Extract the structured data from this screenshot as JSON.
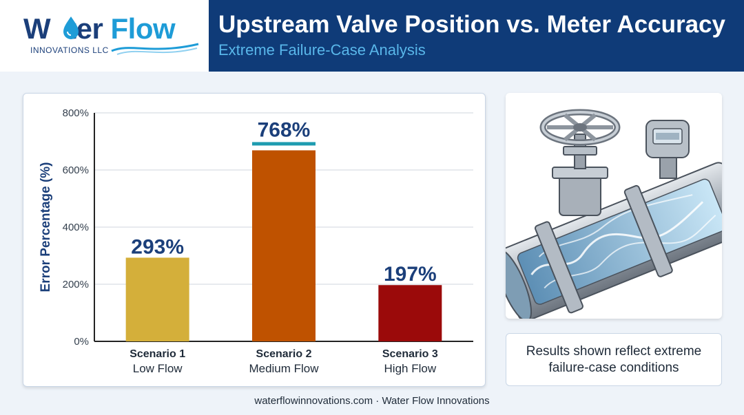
{
  "brand": {
    "name_part1": "W",
    "name_part2": "ter",
    "name_part3": "Flow",
    "subtitle": "INNOVATIONS LLC",
    "dark_color": "#1b3f7a",
    "accent_color": "#1e9cd7"
  },
  "header": {
    "title": "Upstream Valve Position vs. Meter Accuracy",
    "subtitle": "Extreme Failure-Case Analysis"
  },
  "chart_data": {
    "type": "bar",
    "ylabel": "Error Percentage (%)",
    "ylim": [
      0,
      800
    ],
    "yticks": [
      0,
      200,
      400,
      600,
      800
    ],
    "ytick_labels": [
      "0%",
      "200%",
      "400%",
      "600%",
      "800%"
    ],
    "grid": true,
    "categories": [
      {
        "name": "Scenario 1",
        "detail": "Low Flow"
      },
      {
        "name": "Scenario 2",
        "detail": "Medium Flow"
      },
      {
        "name": "Scenario 3",
        "detail": "High Flow"
      }
    ],
    "values": [
      293,
      768,
      197
    ],
    "data_labels": [
      "293%",
      "768%",
      "197%"
    ],
    "colors": [
      "#d4af3a",
      "#bf5200",
      "#9b0a0a"
    ],
    "highlight_color": "#1e9cb0"
  },
  "illustration": {
    "icon": "valve-pipe-meter-illustration"
  },
  "note": {
    "text": "Results shown reflect extreme failure-case conditions"
  },
  "footer": {
    "text": "waterflowinnovations.com · Water Flow Innovations"
  }
}
